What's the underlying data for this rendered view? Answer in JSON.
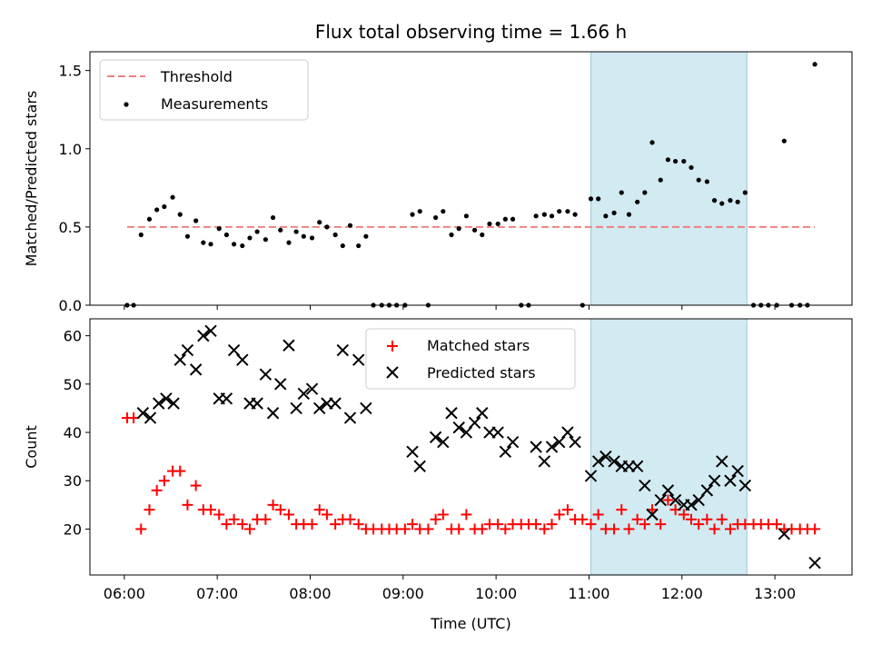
{
  "chart_data": [
    {
      "type": "scatter",
      "title": "Flux total observing time = 1.66 h",
      "xlabel": "",
      "ylabel": "Matched/Predicted stars",
      "xlim": [
        5.63,
        13.83
      ],
      "ylim": [
        0,
        1.62
      ],
      "yticks": [
        "0.0",
        "0.5",
        "1.0",
        "1.5"
      ],
      "grid": false,
      "legend_position": "top-left",
      "highlight_span": {
        "x0": 11.02,
        "x1": 12.7,
        "color": "#add8e6"
      },
      "threshold": {
        "name": "Threshold",
        "y": 0.5,
        "x0": 6.03,
        "x1": 13.43,
        "color": "#f08080"
      },
      "series": [
        {
          "name": "Measurements",
          "color": "#000000",
          "points": [
            [
              6.03,
              0.0
            ],
            [
              6.1,
              0.0
            ],
            [
              6.18,
              0.45
            ],
            [
              6.27,
              0.55
            ],
            [
              6.35,
              0.61
            ],
            [
              6.43,
              0.63
            ],
            [
              6.52,
              0.69
            ],
            [
              6.6,
              0.58
            ],
            [
              6.68,
              0.44
            ],
            [
              6.77,
              0.54
            ],
            [
              6.85,
              0.4
            ],
            [
              6.93,
              0.39
            ],
            [
              7.02,
              0.49
            ],
            [
              7.1,
              0.45
            ],
            [
              7.18,
              0.39
            ],
            [
              7.27,
              0.38
            ],
            [
              7.35,
              0.43
            ],
            [
              7.43,
              0.47
            ],
            [
              7.52,
              0.42
            ],
            [
              7.6,
              0.56
            ],
            [
              7.68,
              0.48
            ],
            [
              7.77,
              0.4
            ],
            [
              7.85,
              0.47
            ],
            [
              7.93,
              0.44
            ],
            [
              8.02,
              0.43
            ],
            [
              8.1,
              0.53
            ],
            [
              8.18,
              0.5
            ],
            [
              8.27,
              0.45
            ],
            [
              8.35,
              0.38
            ],
            [
              8.43,
              0.51
            ],
            [
              8.52,
              0.38
            ],
            [
              8.6,
              0.44
            ],
            [
              8.68,
              0.0
            ],
            [
              8.77,
              0.0
            ],
            [
              8.85,
              0.0
            ],
            [
              8.93,
              0.0
            ],
            [
              9.02,
              0.0
            ],
            [
              9.1,
              0.58
            ],
            [
              9.18,
              0.6
            ],
            [
              9.27,
              0.0
            ],
            [
              9.35,
              0.56
            ],
            [
              9.43,
              0.6
            ],
            [
              9.52,
              0.45
            ],
            [
              9.6,
              0.49
            ],
            [
              9.68,
              0.57
            ],
            [
              9.77,
              0.48
            ],
            [
              9.85,
              0.45
            ],
            [
              9.93,
              0.52
            ],
            [
              10.02,
              0.52
            ],
            [
              10.1,
              0.55
            ],
            [
              10.18,
              0.55
            ],
            [
              10.27,
              0.0
            ],
            [
              10.35,
              0.0
            ],
            [
              10.43,
              0.57
            ],
            [
              10.52,
              0.58
            ],
            [
              10.6,
              0.57
            ],
            [
              10.68,
              0.6
            ],
            [
              10.77,
              0.6
            ],
            [
              10.85,
              0.58
            ],
            [
              10.93,
              0.0
            ],
            [
              11.02,
              0.68
            ],
            [
              11.1,
              0.68
            ],
            [
              11.18,
              0.57
            ],
            [
              11.27,
              0.59
            ],
            [
              11.35,
              0.72
            ],
            [
              11.43,
              0.58
            ],
            [
              11.52,
              0.66
            ],
            [
              11.6,
              0.72
            ],
            [
              11.68,
              1.04
            ],
            [
              11.77,
              0.8
            ],
            [
              11.85,
              0.93
            ],
            [
              11.93,
              0.92
            ],
            [
              12.02,
              0.92
            ],
            [
              12.1,
              0.88
            ],
            [
              12.18,
              0.8
            ],
            [
              12.27,
              0.79
            ],
            [
              12.35,
              0.67
            ],
            [
              12.43,
              0.65
            ],
            [
              12.52,
              0.67
            ],
            [
              12.6,
              0.66
            ],
            [
              12.68,
              0.72
            ],
            [
              12.77,
              0.0
            ],
            [
              12.85,
              0.0
            ],
            [
              12.93,
              0.0
            ],
            [
              13.02,
              0.0
            ],
            [
              13.1,
              1.05
            ],
            [
              13.18,
              0.0
            ],
            [
              13.27,
              0.0
            ],
            [
              13.35,
              0.0
            ],
            [
              13.43,
              1.54
            ]
          ]
        }
      ]
    },
    {
      "type": "scatter",
      "title": "",
      "xlabel": "Time (UTC)",
      "ylabel": "Count",
      "xlim": [
        5.63,
        13.83
      ],
      "ylim": [
        10.5,
        63.5
      ],
      "xticks": [
        "06:00",
        "07:00",
        "08:00",
        "09:00",
        "10:00",
        "11:00",
        "12:00",
        "13:00"
      ],
      "yticks": [
        "20",
        "30",
        "40",
        "50",
        "60"
      ],
      "grid": false,
      "legend_position": "top-center",
      "highlight_span": {
        "x0": 11.02,
        "x1": 12.7,
        "color": "#add8e6"
      },
      "series": [
        {
          "name": "Matched stars",
          "marker": "+",
          "color": "#ff0000",
          "points": [
            [
              6.03,
              43
            ],
            [
              6.1,
              43
            ],
            [
              6.18,
              20
            ],
            [
              6.27,
              24
            ],
            [
              6.35,
              28
            ],
            [
              6.43,
              30
            ],
            [
              6.52,
              32
            ],
            [
              6.6,
              32
            ],
            [
              6.68,
              25
            ],
            [
              6.77,
              29
            ],
            [
              6.85,
              24
            ],
            [
              6.93,
              24
            ],
            [
              7.02,
              23
            ],
            [
              7.1,
              21
            ],
            [
              7.18,
              22
            ],
            [
              7.27,
              21
            ],
            [
              7.35,
              20
            ],
            [
              7.43,
              22
            ],
            [
              7.52,
              22
            ],
            [
              7.6,
              25
            ],
            [
              7.68,
              24
            ],
            [
              7.77,
              23
            ],
            [
              7.85,
              21
            ],
            [
              7.93,
              21
            ],
            [
              8.02,
              21
            ],
            [
              8.1,
              24
            ],
            [
              8.18,
              23
            ],
            [
              8.27,
              21
            ],
            [
              8.35,
              22
            ],
            [
              8.43,
              22
            ],
            [
              8.52,
              21
            ],
            [
              8.6,
              20
            ],
            [
              8.68,
              20
            ],
            [
              8.77,
              20
            ],
            [
              8.85,
              20
            ],
            [
              8.93,
              20
            ],
            [
              9.02,
              20
            ],
            [
              9.1,
              21
            ],
            [
              9.18,
              20
            ],
            [
              9.27,
              20
            ],
            [
              9.35,
              22
            ],
            [
              9.43,
              23
            ],
            [
              9.52,
              20
            ],
            [
              9.6,
              20
            ],
            [
              9.68,
              23
            ],
            [
              9.77,
              20
            ],
            [
              9.85,
              20
            ],
            [
              9.93,
              21
            ],
            [
              10.02,
              21
            ],
            [
              10.1,
              20
            ],
            [
              10.18,
              21
            ],
            [
              10.27,
              21
            ],
            [
              10.35,
              21
            ],
            [
              10.43,
              21
            ],
            [
              10.52,
              20
            ],
            [
              10.6,
              21
            ],
            [
              10.68,
              23
            ],
            [
              10.77,
              24
            ],
            [
              10.85,
              22
            ],
            [
              10.93,
              22
            ],
            [
              11.02,
              21
            ],
            [
              11.1,
              23
            ],
            [
              11.18,
              20
            ],
            [
              11.27,
              20
            ],
            [
              11.35,
              24
            ],
            [
              11.43,
              20
            ],
            [
              11.52,
              22
            ],
            [
              11.6,
              21
            ],
            [
              11.68,
              24
            ],
            [
              11.77,
              21
            ],
            [
              11.85,
              26
            ],
            [
              11.93,
              24
            ],
            [
              12.02,
              23
            ],
            [
              12.1,
              22
            ],
            [
              12.18,
              21
            ],
            [
              12.27,
              22
            ],
            [
              12.35,
              20
            ],
            [
              12.43,
              22
            ],
            [
              12.52,
              20
            ],
            [
              12.6,
              21
            ],
            [
              12.68,
              21
            ],
            [
              12.77,
              21
            ],
            [
              12.85,
              21
            ],
            [
              12.93,
              21
            ],
            [
              13.02,
              21
            ],
            [
              13.1,
              20
            ],
            [
              13.18,
              20
            ],
            [
              13.27,
              20
            ],
            [
              13.35,
              20
            ],
            [
              13.43,
              20
            ]
          ]
        },
        {
          "name": "Predicted stars",
          "marker": "x",
          "color": "#000000",
          "points": [
            [
              6.2,
              44
            ],
            [
              6.28,
              43
            ],
            [
              6.37,
              46
            ],
            [
              6.45,
              47
            ],
            [
              6.53,
              46
            ],
            [
              6.6,
              55
            ],
            [
              6.68,
              57
            ],
            [
              6.77,
              53
            ],
            [
              6.85,
              60
            ],
            [
              6.93,
              61
            ],
            [
              7.02,
              47
            ],
            [
              7.1,
              47
            ],
            [
              7.18,
              57
            ],
            [
              7.27,
              55
            ],
            [
              7.35,
              46
            ],
            [
              7.43,
              46
            ],
            [
              7.52,
              52
            ],
            [
              7.6,
              44
            ],
            [
              7.68,
              50
            ],
            [
              7.77,
              58
            ],
            [
              7.85,
              45
            ],
            [
              7.93,
              48
            ],
            [
              8.02,
              49
            ],
            [
              8.1,
              45
            ],
            [
              8.18,
              46
            ],
            [
              8.27,
              46
            ],
            [
              8.35,
              57
            ],
            [
              8.43,
              43
            ],
            [
              8.52,
              55
            ],
            [
              8.6,
              45
            ],
            [
              9.1,
              36
            ],
            [
              9.18,
              33
            ],
            [
              9.35,
              39
            ],
            [
              9.43,
              38
            ],
            [
              9.52,
              44
            ],
            [
              9.6,
              41
            ],
            [
              9.68,
              40
            ],
            [
              9.77,
              42
            ],
            [
              9.85,
              44
            ],
            [
              9.93,
              40
            ],
            [
              10.02,
              40
            ],
            [
              10.1,
              36
            ],
            [
              10.18,
              38
            ],
            [
              10.43,
              37
            ],
            [
              10.52,
              34
            ],
            [
              10.6,
              37
            ],
            [
              10.68,
              38
            ],
            [
              10.77,
              40
            ],
            [
              10.85,
              38
            ],
            [
              11.02,
              31
            ],
            [
              11.1,
              34
            ],
            [
              11.18,
              35
            ],
            [
              11.27,
              34
            ],
            [
              11.35,
              33
            ],
            [
              11.43,
              33
            ],
            [
              11.52,
              33
            ],
            [
              11.6,
              29
            ],
            [
              11.68,
              23
            ],
            [
              11.77,
              26
            ],
            [
              11.85,
              28
            ],
            [
              11.93,
              26
            ],
            [
              12.02,
              25
            ],
            [
              12.1,
              25
            ],
            [
              12.18,
              26
            ],
            [
              12.27,
              28
            ],
            [
              12.35,
              30
            ],
            [
              12.43,
              34
            ],
            [
              12.52,
              30
            ],
            [
              12.6,
              32
            ],
            [
              12.68,
              29
            ],
            [
              13.1,
              19
            ],
            [
              13.43,
              13
            ]
          ]
        }
      ]
    }
  ]
}
